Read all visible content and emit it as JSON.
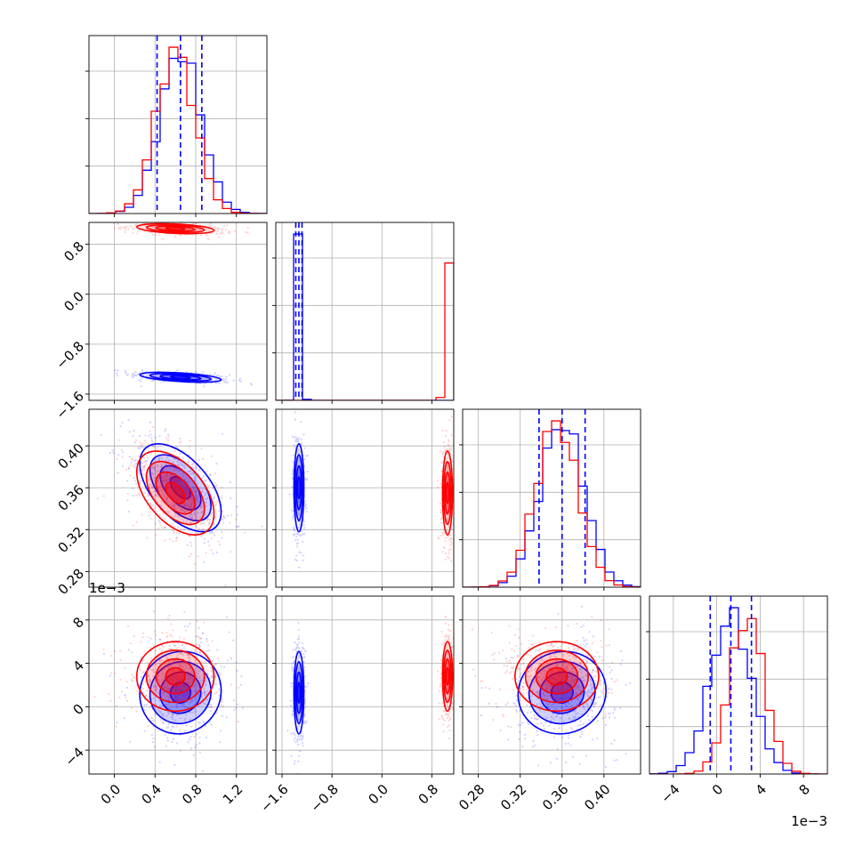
{
  "chart_data": {
    "type": "corner",
    "title": "",
    "parameters": [
      {
        "name": "",
        "range": [
          -0.25,
          1.5
        ],
        "ticks": [
          0.0,
          0.4,
          0.8,
          1.2
        ],
        "tick_labels": [
          "0.0",
          "0.4",
          "0.8",
          "1.2"
        ],
        "quantiles": [
          0.42,
          0.65,
          0.86
        ]
      },
      {
        "name": "",
        "range": [
          -1.7,
          1.15
        ],
        "ticks": [
          -1.6,
          -0.8,
          0.0,
          0.8
        ],
        "tick_labels": [
          "−1.6",
          "−0.8",
          "0.0",
          "0.8"
        ],
        "quantiles": [
          -1.38,
          -1.33,
          -1.28
        ]
      },
      {
        "name": "",
        "range": [
          0.265,
          0.435
        ],
        "ticks": [
          0.28,
          0.32,
          0.36,
          0.4
        ],
        "tick_labels": [
          "0.28",
          "0.32",
          "0.36",
          "0.40"
        ],
        "quantiles": [
          0.338,
          0.36,
          0.382
        ]
      },
      {
        "name": "",
        "range": [
          -0.0062,
          0.0102
        ],
        "ticks": [
          -0.004,
          0.0,
          0.004,
          0.008
        ],
        "tick_labels": [
          "−4",
          "0",
          "4",
          "8"
        ],
        "exponent_label": "1e−3",
        "quantiles": [
          -0.0006,
          0.0013,
          0.0032
        ]
      }
    ],
    "series": [
      {
        "name": "",
        "color": "#0000ff",
        "means": [
          0.65,
          -1.33,
          0.36,
          0.0013
        ],
        "sds": [
          0.2,
          0.04,
          0.021,
          0.0019
        ],
        "correlations": {
          "1-0": -0.5,
          "2-0": -0.55,
          "3-0": 0.05,
          "2-1": 0.0,
          "3-1": 0.0,
          "3-2": 0.05
        }
      },
      {
        "name": "",
        "color": "#ff0000",
        "means": [
          0.6,
          1.05,
          0.355,
          0.0028
        ],
        "sds": [
          0.19,
          0.04,
          0.02,
          0.0016
        ],
        "correlations": {
          "1-0": -0.35,
          "2-0": -0.5,
          "3-0": 0.0,
          "2-1": 0.0,
          "3-1": 0.0,
          "3-2": 0.0
        }
      }
    ],
    "grid": true,
    "legend": "none"
  }
}
